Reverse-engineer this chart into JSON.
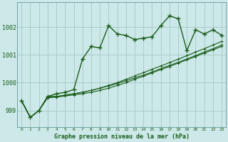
{
  "title": "Graphe pression niveau de la mer (hPa)",
  "background_color": "#cce8e8",
  "grid_color": "#aacccc",
  "line_color": "#1a5c1a",
  "x_ticks": [
    0,
    1,
    2,
    3,
    4,
    5,
    6,
    7,
    8,
    9,
    10,
    11,
    12,
    13,
    14,
    15,
    16,
    17,
    18,
    19,
    20,
    21,
    22,
    23
  ],
  "ylim": [
    998.4,
    1002.9
  ],
  "yticks": [
    999,
    1000,
    1001,
    1002
  ],
  "series": {
    "main": [
      999.35,
      998.75,
      999.0,
      999.5,
      999.6,
      999.65,
      999.75,
      1000.85,
      1001.3,
      1001.25,
      1002.05,
      1001.75,
      1001.7,
      1001.55,
      1001.6,
      1001.65,
      1002.05,
      1002.4,
      1002.3,
      1001.15,
      1001.9,
      1001.75,
      1001.9,
      1001.7
    ],
    "line2": [
      999.35,
      998.75,
      999.0,
      999.5,
      999.5,
      999.55,
      999.6,
      999.65,
      999.72,
      999.8,
      999.88,
      999.97,
      1000.07,
      1000.17,
      1000.27,
      1000.38,
      1000.5,
      1000.62,
      1000.73,
      1000.85,
      1000.97,
      1001.1,
      1001.22,
      1001.35
    ],
    "line3": [
      999.35,
      998.75,
      999.0,
      999.5,
      999.5,
      999.55,
      999.6,
      999.65,
      999.72,
      999.8,
      999.9,
      1000.0,
      1000.12,
      1000.24,
      1000.36,
      1000.48,
      1000.6,
      1000.72,
      1000.84,
      1000.97,
      1001.1,
      1001.22,
      1001.35,
      1001.48
    ],
    "line4": [
      999.35,
      998.75,
      999.0,
      999.45,
      999.48,
      999.52,
      999.56,
      999.6,
      999.65,
      999.72,
      999.8,
      999.9,
      1000.0,
      1000.12,
      1000.23,
      1000.35,
      1000.47,
      1000.58,
      1000.7,
      1000.82,
      1000.94,
      1001.06,
      1001.18,
      1001.3
    ]
  }
}
